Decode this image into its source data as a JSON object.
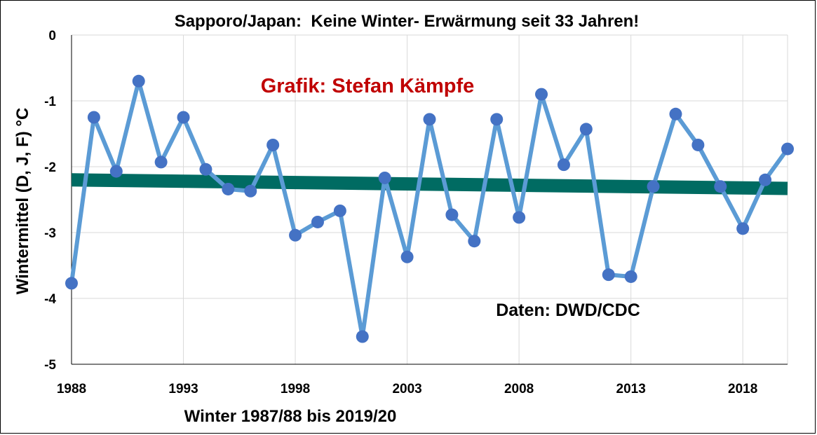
{
  "chart_data": {
    "type": "line",
    "title": "Sapporo/Japan:  Keine Winter- Erwärmung seit 33 Jahren!",
    "xlabel": "Winter 1987/88 bis 2019/20",
    "ylabel": "Wintermittel (D, J, F) °C",
    "xlim": [
      1988,
      2020
    ],
    "ylim": [
      -5,
      0
    ],
    "x_ticks": [
      1988,
      1993,
      1998,
      2003,
      2008,
      2013,
      2018
    ],
    "x_tick_labels": [
      "1988",
      "1993",
      "1998",
      "2003",
      "2008",
      "2013",
      "2018"
    ],
    "y_ticks": [
      0,
      -1,
      -2,
      -3,
      -4,
      -5
    ],
    "y_tick_labels": [
      "0",
      "-1",
      "-2",
      "-3",
      "-4",
      "-5"
    ],
    "grid": true,
    "legend": "none",
    "series": [
      {
        "color": "#5b9bd5",
        "marker_color": "#4472c4",
        "x": [
          1988,
          1989,
          1990,
          1991,
          1992,
          1993,
          1994,
          1995,
          1996,
          1997,
          1998,
          1999,
          2000,
          2001,
          2002,
          2003,
          2004,
          2005,
          2006,
          2007,
          2008,
          2009,
          2010,
          2011,
          2012,
          2013,
          2014,
          2015,
          2016,
          2017,
          2018,
          2019,
          2020
        ],
        "values": [
          -3.77,
          -1.25,
          -2.07,
          -0.7,
          -1.93,
          -1.25,
          -2.04,
          -2.34,
          -2.37,
          -1.67,
          -3.04,
          -2.84,
          -2.67,
          -4.58,
          -2.17,
          -3.37,
          -1.28,
          -2.73,
          -3.13,
          -1.28,
          -2.77,
          -0.9,
          -1.97,
          -1.43,
          -3.64,
          -3.67,
          -2.3,
          -1.2,
          -1.67,
          -2.3,
          -2.94,
          -2.2,
          -1.73
        ]
      }
    ],
    "trendline": {
      "color": "#006b62",
      "x": [
        1988,
        2020
      ],
      "values": [
        -2.2,
        -2.33
      ]
    },
    "annotations": [
      {
        "text": "Grafik: Stefan Kämpfe",
        "color": "#c00000"
      },
      {
        "text": "Daten: DWD/CDC",
        "color": "#000000"
      }
    ]
  }
}
